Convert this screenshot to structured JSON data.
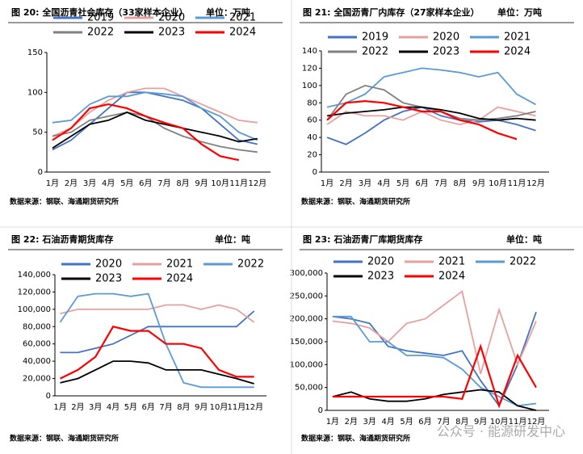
{
  "chart_data": [
    {
      "type": "line",
      "title": "图 20:   全国沥青社会库存（33家样本企业）",
      "unit": "单位：万吨",
      "source": "数据来源：钢联、海通期货研究所",
      "categories": [
        "1月",
        "2月",
        "3月",
        "4月",
        "5月",
        "6月",
        "7月",
        "8月",
        "9月",
        "10月",
        "11月",
        "12月"
      ],
      "ylim": [
        0,
        150
      ],
      "yticks": [
        0,
        50,
        100,
        150
      ],
      "series": [
        {
          "name": "2019",
          "color": "#4472c4",
          "values": [
            28,
            40,
            60,
            80,
            100,
            100,
            95,
            90,
            80,
            60,
            40,
            35
          ]
        },
        {
          "name": "2020",
          "color": "#e6a0a0",
          "values": [
            45,
            55,
            75,
            90,
            100,
            105,
            105,
            95,
            85,
            75,
            65,
            62
          ]
        },
        {
          "name": "2021",
          "color": "#5b9bd5",
          "values": [
            62,
            65,
            85,
            95,
            95,
            100,
            98,
            95,
            80,
            70,
            50,
            40
          ]
        },
        {
          "name": "2022",
          "color": "#808080",
          "values": [
            45,
            50,
            65,
            70,
            75,
            70,
            55,
            45,
            38,
            32,
            28,
            25
          ]
        },
        {
          "name": "2023",
          "color": "#000000",
          "values": [
            30,
            45,
            60,
            65,
            75,
            65,
            60,
            55,
            50,
            45,
            38,
            42
          ]
        },
        {
          "name": "2024",
          "color": "#ff0000",
          "values": [
            40,
            55,
            80,
            85,
            80,
            70,
            62,
            55,
            35,
            20,
            15,
            null
          ]
        }
      ]
    },
    {
      "type": "line",
      "title": "图 21:   全国沥青厂内库存（27家样本企业）",
      "unit": "单位：万吨",
      "source": "数据来源：钢联、海通期货研究所",
      "categories": [
        "1月",
        "2月",
        "3月",
        "4月",
        "5月",
        "6月",
        "7月",
        "8月",
        "9月",
        "10月",
        "11月",
        "12月"
      ],
      "ylim": [
        0,
        140
      ],
      "yticks": [
        0,
        20,
        40,
        60,
        80,
        100,
        120,
        140
      ],
      "series": [
        {
          "name": "2019",
          "color": "#4472c4",
          "values": [
            40,
            32,
            45,
            60,
            70,
            75,
            65,
            60,
            58,
            60,
            55,
            48
          ]
        },
        {
          "name": "2020",
          "color": "#e6a0a0",
          "values": [
            55,
            70,
            65,
            65,
            60,
            70,
            60,
            55,
            60,
            75,
            70,
            65
          ]
        },
        {
          "name": "2021",
          "color": "#5b9bd5",
          "values": [
            75,
            80,
            90,
            110,
            115,
            120,
            118,
            115,
            110,
            115,
            90,
            78
          ]
        },
        {
          "name": "2022",
          "color": "#808080",
          "values": [
            60,
            90,
            100,
            95,
            80,
            75,
            70,
            62,
            60,
            62,
            65,
            70
          ]
        },
        {
          "name": "2023",
          "color": "#000000",
          "values": [
            65,
            68,
            70,
            72,
            75,
            75,
            72,
            68,
            62,
            60,
            62,
            60
          ]
        },
        {
          "name": "2024",
          "color": "#ff0000",
          "values": [
            60,
            80,
            82,
            80,
            75,
            70,
            70,
            60,
            55,
            45,
            38,
            null
          ]
        }
      ]
    },
    {
      "type": "line",
      "title": "图 22:   石油沥青期货库存",
      "unit": "单位：吨",
      "source": "数据来源：钢联、海通期货研究所",
      "categories": [
        "1月",
        "2月",
        "3月",
        "4月",
        "5月",
        "6月",
        "7月",
        "8月",
        "9月",
        "10月",
        "11月",
        "12月"
      ],
      "ylim": [
        0,
        140000
      ],
      "yticks": [
        {
          "value": 0,
          "label": "0"
        },
        {
          "value": 20000,
          "label": "20,000"
        },
        {
          "value": 40000,
          "label": "40,000"
        },
        {
          "value": 60000,
          "label": "60,000"
        },
        {
          "value": 80000,
          "label": "80,000"
        },
        {
          "value": 100000,
          "label": "100,000"
        },
        {
          "value": 120000,
          "label": "120,000"
        },
        {
          "value": 140000,
          "label": "140,000"
        }
      ],
      "series": [
        {
          "name": "2020",
          "color": "#4472c4",
          "values": [
            50000,
            50000,
            55000,
            60000,
            70000,
            80000,
            80000,
            80000,
            80000,
            80000,
            80000,
            98000
          ]
        },
        {
          "name": "2021",
          "color": "#e6a0a0",
          "values": [
            95000,
            100000,
            100000,
            100000,
            100000,
            100000,
            105000,
            105000,
            100000,
            105000,
            100000,
            85000
          ]
        },
        {
          "name": "2022",
          "color": "#5b9bd5",
          "values": [
            85000,
            115000,
            118000,
            118000,
            115000,
            118000,
            60000,
            15000,
            10000,
            10000,
            10000,
            10000
          ]
        },
        {
          "name": "2023",
          "color": "#000000",
          "values": [
            15000,
            20000,
            30000,
            40000,
            40000,
            38000,
            30000,
            30000,
            30000,
            25000,
            20000,
            14000
          ]
        },
        {
          "name": "2024",
          "color": "#ff0000",
          "values": [
            20000,
            30000,
            45000,
            80000,
            75000,
            75000,
            60000,
            60000,
            55000,
            30000,
            22000,
            22000
          ]
        }
      ]
    },
    {
      "type": "line",
      "title": "图 23:   石油沥青厂库期货库存",
      "unit": "单位：吨",
      "source": "数据来源：钢联、海通期货研究所",
      "categories": [
        "1月",
        "2月",
        "3月",
        "4月",
        "5月",
        "6月",
        "7月",
        "8月",
        "9月",
        "10月",
        "11月",
        "12月"
      ],
      "ylim": [
        0,
        300000
      ],
      "yticks": [
        {
          "value": 0,
          "label": "0"
        },
        {
          "value": 50000,
          "label": "50,000"
        },
        {
          "value": 100000,
          "label": "100,000"
        },
        {
          "value": 150000,
          "label": "150,000"
        },
        {
          "value": 200000,
          "label": "200,000"
        },
        {
          "value": 250000,
          "label": "250,000"
        },
        {
          "value": 300000,
          "label": "300,000"
        }
      ],
      "series": [
        {
          "name": "2020",
          "color": "#4472c4",
          "values": [
            205000,
            200000,
            190000,
            140000,
            130000,
            125000,
            120000,
            130000,
            65000,
            10000,
            100000,
            215000
          ]
        },
        {
          "name": "2021",
          "color": "#e6a0a0",
          "values": [
            195000,
            190000,
            180000,
            150000,
            190000,
            200000,
            230000,
            260000,
            80000,
            220000,
            100000,
            195000
          ]
        },
        {
          "name": "2022",
          "color": "#5b9bd5",
          "values": [
            205000,
            205000,
            150000,
            150000,
            120000,
            120000,
            115000,
            90000,
            50000,
            30000,
            10000,
            15000
          ]
        },
        {
          "name": "2023",
          "color": "#000000",
          "values": [
            30000,
            40000,
            25000,
            20000,
            20000,
            25000,
            35000,
            40000,
            45000,
            40000,
            10000,
            0
          ]
        },
        {
          "name": "2024",
          "color": "#ff0000",
          "values": [
            30000,
            30000,
            30000,
            30000,
            30000,
            30000,
            30000,
            25000,
            140000,
            10000,
            120000,
            50000
          ]
        }
      ]
    }
  ],
  "watermark": "公众号 · 能源研发中心"
}
